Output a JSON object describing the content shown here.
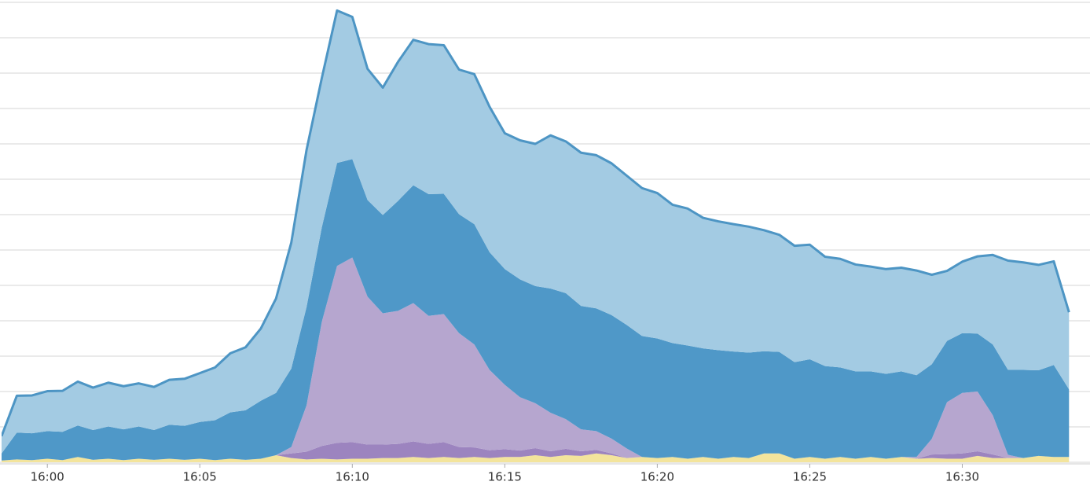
{
  "chart_data": {
    "type": "stacked-area",
    "x": [
      958.5,
      959,
      959.5,
      960,
      960.5,
      961,
      961.5,
      962,
      962.5,
      963,
      963.5,
      964,
      964.5,
      965,
      965.5,
      966,
      966.5,
      967,
      967.5,
      968,
      968.5,
      969,
      969.5,
      970,
      970.5,
      971,
      971.5,
      972,
      972.5,
      973,
      973.5,
      974,
      974.5,
      975,
      975.5,
      976,
      976.5,
      977,
      977.5,
      978,
      978.5,
      979,
      979.5,
      980,
      980.5,
      981,
      981.5,
      982,
      982.5,
      983,
      983.5,
      984,
      984.5,
      985,
      985.5,
      986,
      986.5,
      987,
      987.5,
      988,
      988.5,
      989,
      989.5,
      990,
      990.5,
      991,
      991.5,
      992,
      992.5,
      993,
      993.5
    ],
    "xlim": [
      958.5,
      993.75
    ],
    "xticks": [
      {
        "value": 960,
        "label": "16:00"
      },
      {
        "value": 965,
        "label": "16:05"
      },
      {
        "value": 970,
        "label": "16:10"
      },
      {
        "value": 975,
        "label": "16:15"
      },
      {
        "value": 980,
        "label": "16:20"
      },
      {
        "value": 985,
        "label": "16:25"
      },
      {
        "value": 990,
        "label": "16:30"
      }
    ],
    "ylim": [
      0,
      13
    ],
    "yticks": [
      0,
      1,
      2,
      3,
      4,
      5,
      6,
      7,
      8,
      9,
      10,
      11,
      12,
      13
    ],
    "grid": true,
    "series": [
      {
        "color": "#f3e49c",
        "values": [
          0.05,
          0.08,
          0.06,
          0.1,
          0.06,
          0.15,
          0.07,
          0.1,
          0.06,
          0.1,
          0.07,
          0.1,
          0.07,
          0.1,
          0.06,
          0.1,
          0.07,
          0.1,
          0.2,
          0.12,
          0.08,
          0.1,
          0.08,
          0.1,
          0.1,
          0.12,
          0.12,
          0.15,
          0.12,
          0.15,
          0.12,
          0.15,
          0.12,
          0.15,
          0.15,
          0.2,
          0.15,
          0.2,
          0.18,
          0.25,
          0.2,
          0.12,
          0.15,
          0.12,
          0.15,
          0.1,
          0.15,
          0.1,
          0.15,
          0.12,
          0.25,
          0.25,
          0.1,
          0.15,
          0.1,
          0.15,
          0.1,
          0.15,
          0.1,
          0.15,
          0.1,
          0.12,
          0.1,
          0.1,
          0.18,
          0.12,
          0.12,
          0.12,
          0.18,
          0.15,
          0.15
        ]
      },
      {
        "color": "#9c84bf",
        "values": [
          0,
          0,
          0,
          0,
          0,
          0,
          0,
          0,
          0,
          0,
          0,
          0,
          0,
          0,
          0,
          0,
          0,
          0,
          0,
          0.13,
          0.22,
          0.36,
          0.47,
          0.47,
          0.4,
          0.38,
          0.4,
          0.44,
          0.4,
          0.42,
          0.31,
          0.27,
          0.22,
          0.22,
          0.18,
          0.2,
          0.16,
          0.18,
          0.13,
          0.1,
          0.05,
          0,
          0,
          0,
          0,
          0,
          0,
          0,
          0,
          0,
          0,
          0,
          0,
          0,
          0,
          0,
          0,
          0,
          0,
          0,
          0,
          0.1,
          0.13,
          0.15,
          0.13,
          0.1,
          0,
          0,
          0,
          0,
          0
        ]
      },
      {
        "color": "#b6a6cf",
        "values": [
          0,
          0,
          0,
          0,
          0,
          0,
          0,
          0,
          0,
          0,
          0,
          0,
          0,
          0,
          0,
          0,
          0,
          0,
          0,
          0.18,
          1.31,
          3.51,
          5.0,
          5.22,
          4.18,
          3.71,
          3.76,
          3.91,
          3.62,
          3.62,
          3.22,
          2.91,
          2.27,
          1.82,
          1.51,
          1.27,
          1.09,
          0.84,
          0.62,
          0.53,
          0.42,
          0.27,
          0,
          0,
          0,
          0,
          0,
          0,
          0,
          0,
          0,
          0,
          0,
          0,
          0,
          0,
          0,
          0,
          0,
          0,
          0.05,
          0.44,
          1.47,
          1.71,
          1.69,
          1.11,
          0.09,
          0,
          0,
          0,
          0
        ]
      },
      {
        "color": "#4f98c8",
        "values": [
          0.2,
          0.76,
          0.76,
          0.78,
          0.8,
          0.89,
          0.84,
          0.91,
          0.87,
          0.91,
          0.84,
          0.96,
          0.96,
          1.04,
          1.13,
          1.31,
          1.4,
          1.64,
          1.76,
          2.22,
          2.78,
          2.67,
          2.91,
          2.78,
          2.73,
          2.78,
          3.11,
          3.33,
          3.44,
          3.4,
          3.36,
          3.4,
          3.33,
          3.27,
          3.33,
          3.31,
          3.51,
          3.56,
          3.49,
          3.47,
          3.49,
          3.49,
          3.42,
          3.38,
          3.22,
          3.2,
          3.07,
          3.07,
          2.98,
          2.98,
          2.89,
          2.87,
          2.73,
          2.76,
          2.62,
          2.53,
          2.47,
          2.42,
          2.4,
          2.42,
          2.31,
          2.11,
          1.73,
          1.69,
          1.64,
          2.0,
          2.4,
          2.49,
          2.42,
          2.6,
          1.91
        ]
      },
      {
        "color": "#a3cbe3",
        "stroke": "#4d95c4",
        "values": [
          0.49,
          1.04,
          1.07,
          1.13,
          1.16,
          1.24,
          1.2,
          1.24,
          1.22,
          1.22,
          1.22,
          1.27,
          1.33,
          1.38,
          1.49,
          1.67,
          1.78,
          2.04,
          2.67,
          3.56,
          4.44,
          4.22,
          4.31,
          4.02,
          3.71,
          3.6,
          3.93,
          4.11,
          4.24,
          4.2,
          4.09,
          4.24,
          4.11,
          3.84,
          3.93,
          4.02,
          4.33,
          4.29,
          4.33,
          4.33,
          4.29,
          4.22,
          4.18,
          4.11,
          3.91,
          3.87,
          3.69,
          3.64,
          3.6,
          3.56,
          3.42,
          3.31,
          3.29,
          3.24,
          3.09,
          3.07,
          3.02,
          2.96,
          2.96,
          2.93,
          2.96,
          2.53,
          1.98,
          2.02,
          2.18,
          2.53,
          3.09,
          3.04,
          2.98,
          2.93,
          2.18
        ]
      }
    ]
  }
}
